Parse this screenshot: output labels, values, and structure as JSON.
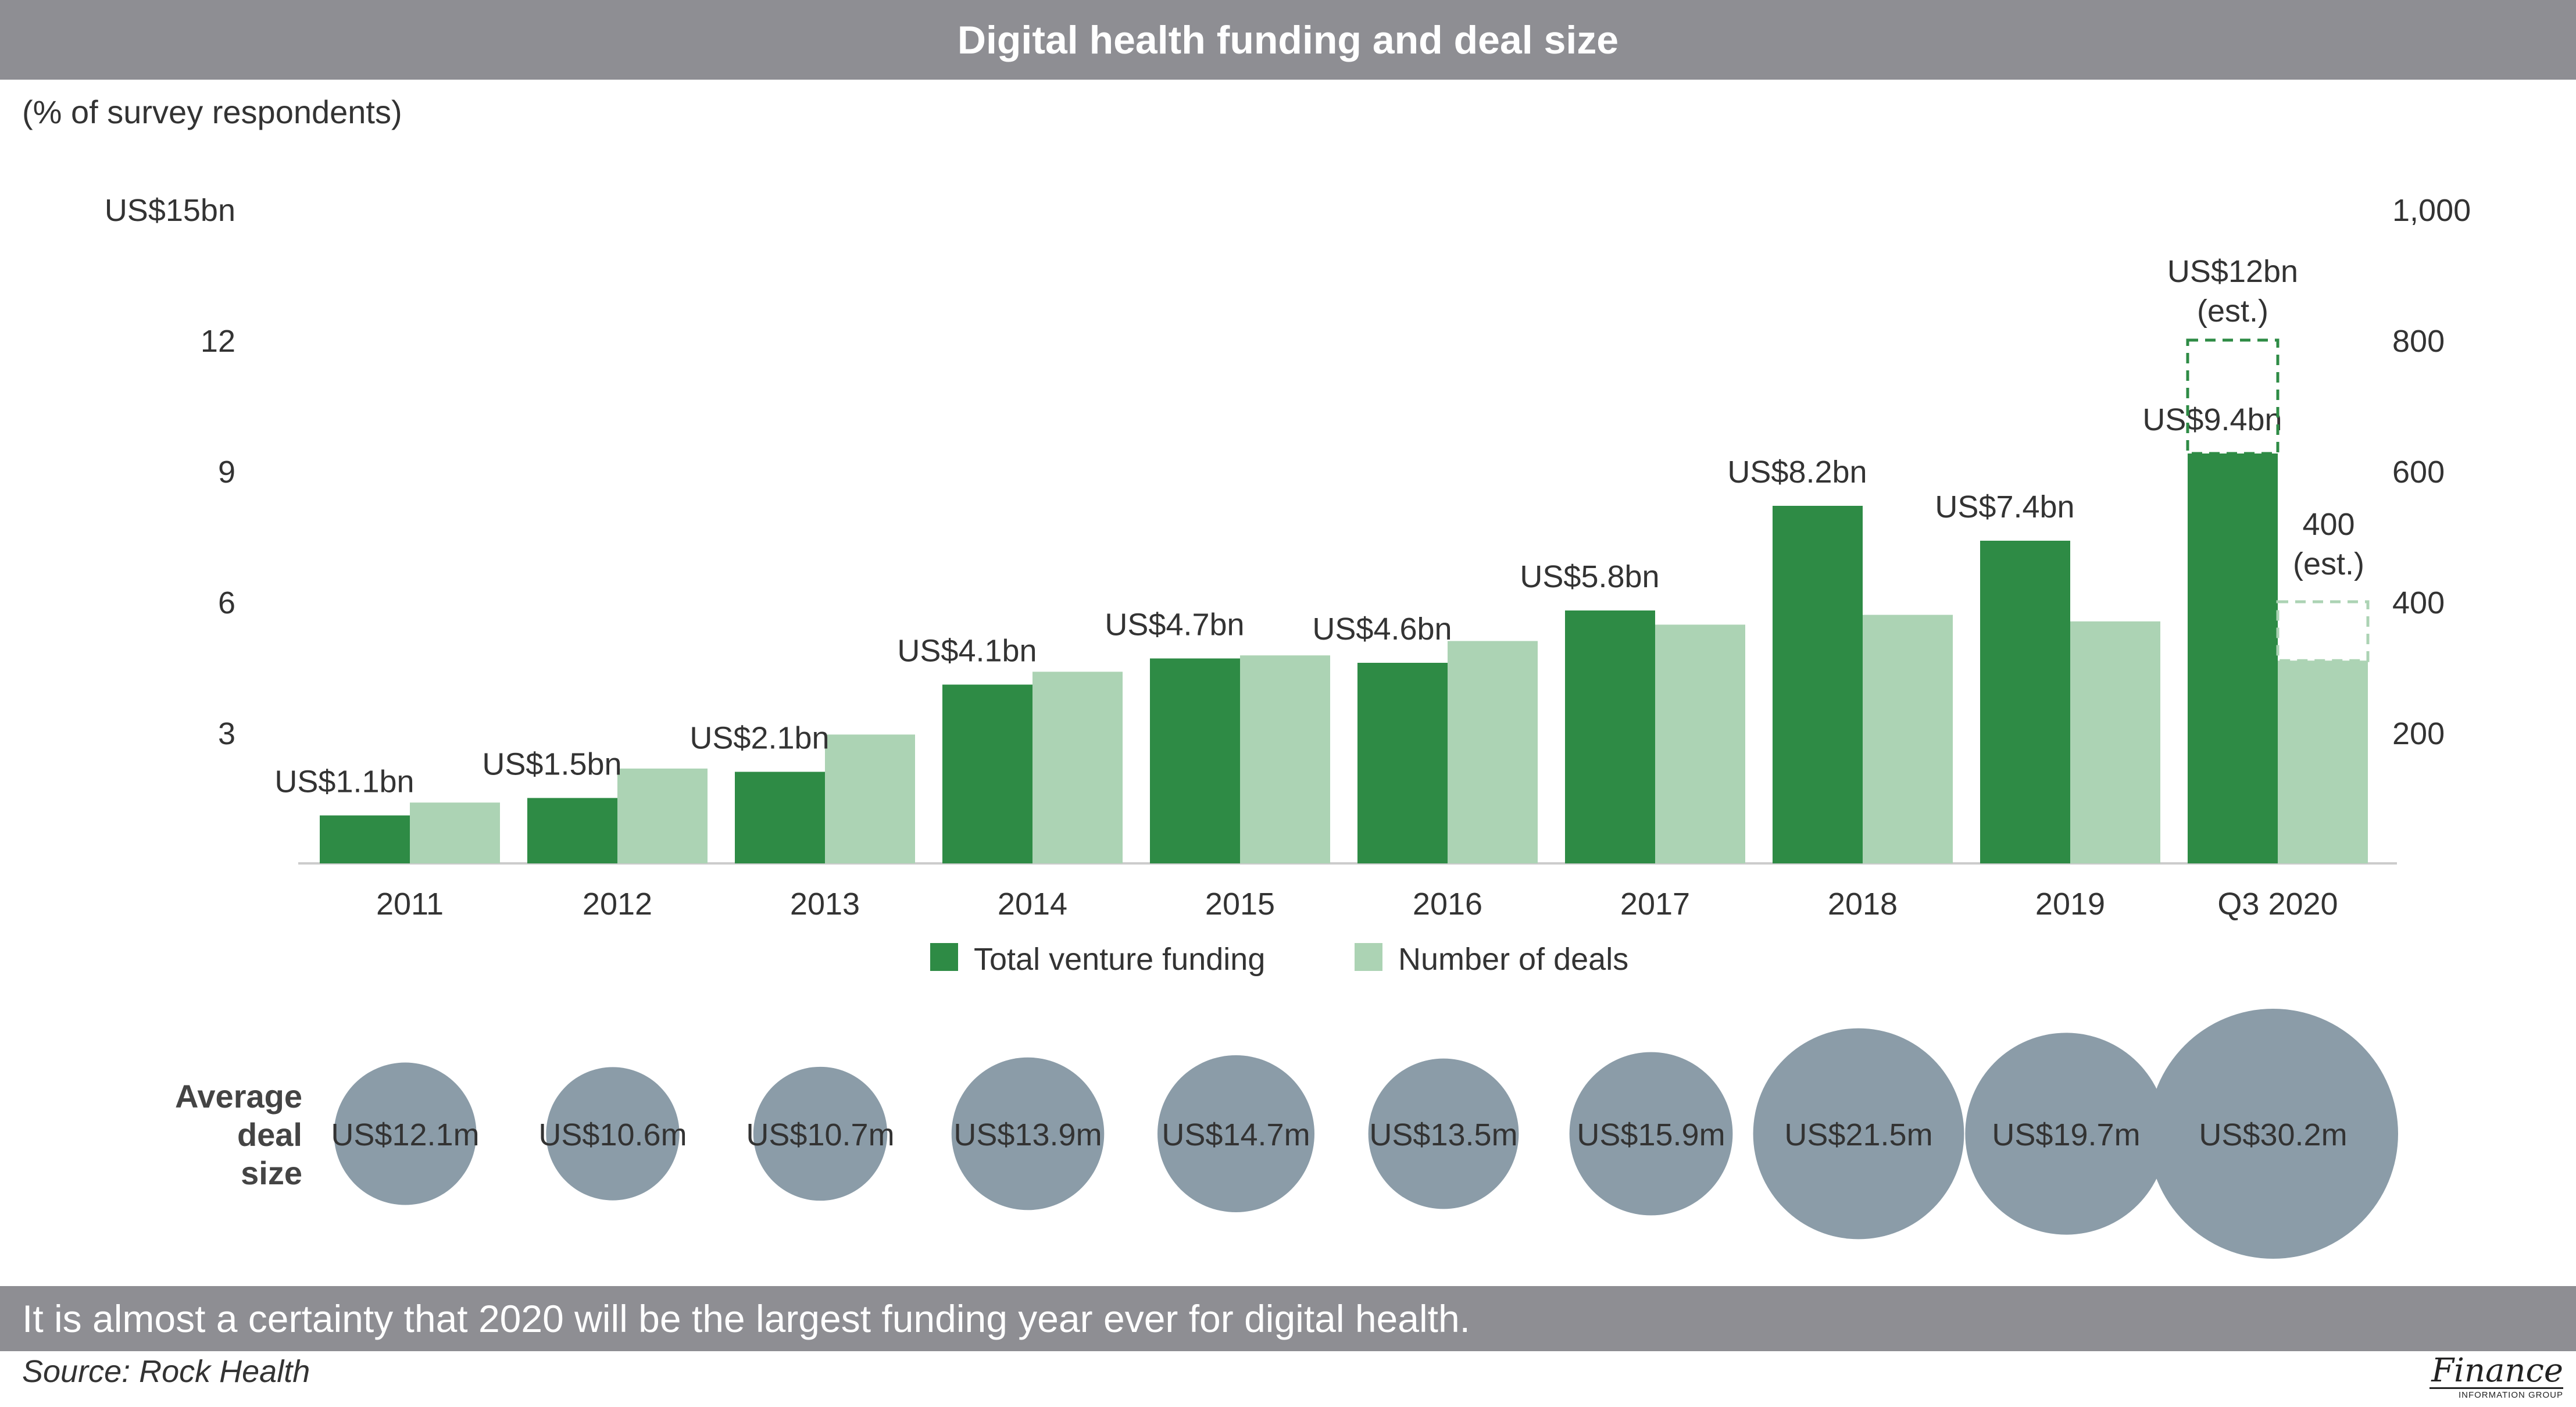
{
  "header": {
    "title": "Digital health funding and deal size"
  },
  "subtitle": "(% of survey respondents)",
  "chart_data": {
    "type": "bar",
    "title": "Digital health funding and deal size",
    "categories": [
      "2011",
      "2012",
      "2013",
      "2014",
      "2015",
      "2016",
      "2017",
      "2018",
      "2019",
      "Q3 2020"
    ],
    "series": [
      {
        "name": "Total venture funding",
        "axis": "left",
        "color": "#2e8b45",
        "values": [
          1.1,
          1.5,
          2.1,
          4.1,
          4.7,
          4.6,
          5.8,
          8.2,
          7.4,
          9.4
        ],
        "labels": [
          "US$1.1bn",
          "US$1.5bn",
          "US$2.1bn",
          "US$4.1bn",
          "US$4.7bn",
          "US$4.6bn",
          "US$5.8bn",
          "US$8.2bn",
          "US$7.4bn",
          "US$9.4bn"
        ]
      },
      {
        "name": "Number of deals",
        "axis": "right",
        "color": "#acd3b4",
        "values": [
          93,
          145,
          197,
          293,
          318,
          340,
          365,
          380,
          370,
          310
        ]
      }
    ],
    "estimates": {
      "funding": {
        "value": 12,
        "label": [
          "US$12bn",
          "(est.)"
        ],
        "color": "#2e8b45"
      },
      "deals": {
        "value": 400,
        "label": [
          "400",
          "(est.)"
        ],
        "color": "#acd3b4"
      }
    },
    "left_axis": {
      "ylim": [
        0,
        15
      ],
      "ticks": [
        3,
        6,
        9,
        12,
        15
      ],
      "tick_labels": [
        "3",
        "6",
        "9",
        "12",
        "US$15bn"
      ]
    },
    "right_axis": {
      "ylim": [
        0,
        1000
      ],
      "ticks": [
        200,
        400,
        600,
        800,
        1000
      ],
      "tick_labels": [
        "200",
        "400",
        "600",
        "800",
        "1,000"
      ]
    },
    "legend": {
      "placement": "bottom-center",
      "items": [
        {
          "label": "Total venture funding",
          "color": "#2e8b45"
        },
        {
          "label": "Number of deals",
          "color": "#acd3b4"
        }
      ]
    },
    "bubbles": {
      "label": [
        "Average",
        "deal",
        "size"
      ],
      "color": "#8b9ca8",
      "values": [
        12.1,
        10.6,
        10.7,
        13.9,
        14.7,
        13.5,
        15.9,
        21.5,
        19.7,
        30.2
      ],
      "labels": [
        "US$12.1m",
        "US$10.6m",
        "US$10.7m",
        "US$13.9m",
        "US$14.7m",
        "US$13.5m",
        "US$15.9m",
        "US$21.5m",
        "US$19.7m",
        "US$30.2m"
      ]
    }
  },
  "caption": "It is almost a certainty that 2020 will be the largest funding year ever for digital health.",
  "source": "Source: Rock Health",
  "logo": {
    "main": "Finance",
    "sub": "INFORMATION GROUP"
  }
}
